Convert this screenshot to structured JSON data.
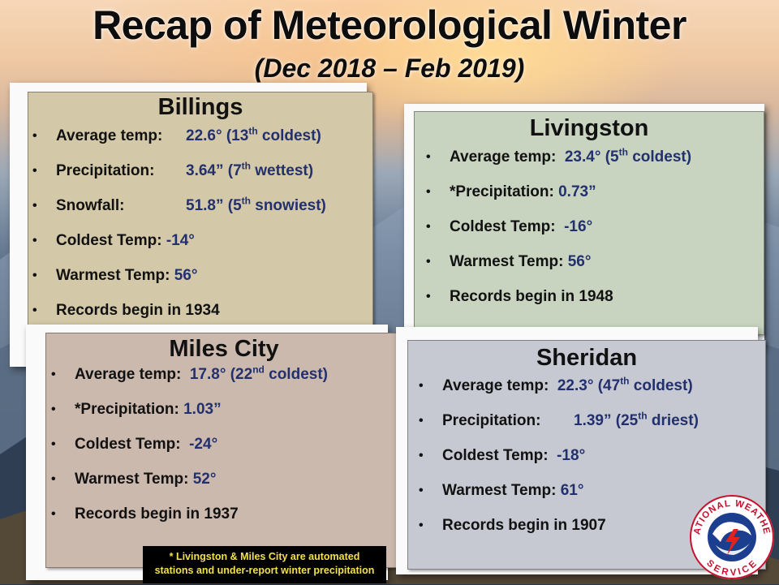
{
  "title": "Recap of Meteorological Winter",
  "subtitle": "(Dec 2018 – Feb 2019)",
  "stations": {
    "billings": {
      "name": "Billings",
      "items": [
        {
          "label": "Average temp:",
          "value": "22.6° (13",
          "sup": "th",
          "after": " coldest)"
        },
        {
          "label": "Precipitation:",
          "value": "3.64” (7",
          "sup": "th",
          "after": " wettest)"
        },
        {
          "label": "Snowfall:",
          "value": "51.8” (5",
          "sup": "th",
          "after": " snowiest)"
        },
        {
          "label": "Coldest Temp:",
          "value": "-14°"
        },
        {
          "label": "Warmest Temp:",
          "value": "56°"
        },
        {
          "label": "Records begin in 1934",
          "value": ""
        }
      ]
    },
    "livingston": {
      "name": "Livingston",
      "items": [
        {
          "label": "Average temp:",
          "value": "23.4° (5",
          "sup": "th",
          "after": " coldest)"
        },
        {
          "label": "*Precipitation:",
          "value": "0.73”"
        },
        {
          "label": "Coldest Temp:",
          "value": "-16°"
        },
        {
          "label": "Warmest Temp:",
          "value": "56°"
        },
        {
          "label": "Records begin in 1948",
          "value": ""
        }
      ]
    },
    "miles_city": {
      "name": "Miles City",
      "items": [
        {
          "label": "Average temp:",
          "value": "17.8° (22",
          "sup": "nd",
          "after": " coldest)"
        },
        {
          "label": "*Precipitation:",
          "value": "1.03”"
        },
        {
          "label": "Coldest Temp:",
          "value": "-24°"
        },
        {
          "label": "Warmest Temp:",
          "value": "52°"
        },
        {
          "label": "Records begin in 1937",
          "value": ""
        }
      ]
    },
    "sheridan": {
      "name": "Sheridan",
      "items": [
        {
          "label": "Average temp:",
          "value": "22.3° (47",
          "sup": "th",
          "after": " coldest)"
        },
        {
          "label": "Precipitation:",
          "value": "1.39” (25",
          "sup": "th",
          "after": " driest)"
        },
        {
          "label": "Coldest Temp:",
          "value": "-18°"
        },
        {
          "label": "Warmest Temp:",
          "value": "61°"
        },
        {
          "label": "Records begin in 1907",
          "value": ""
        }
      ]
    }
  },
  "footnote": {
    "line1": "*  Livingston & Miles City are automated",
    "line2": "stations and under-report winter precipitation"
  },
  "logo": {
    "top_text": "NATIONAL WEATHER",
    "bottom_text": "SERVICE"
  },
  "colors": {
    "value_text": "#22306e",
    "billings_panel": "#d3c8a8",
    "livingston_panel": "#c8d4c0",
    "miles_city_panel": "#ccb9ad",
    "sheridan_panel": "#c6c8d2",
    "footnote_text": "#f2e14a"
  }
}
